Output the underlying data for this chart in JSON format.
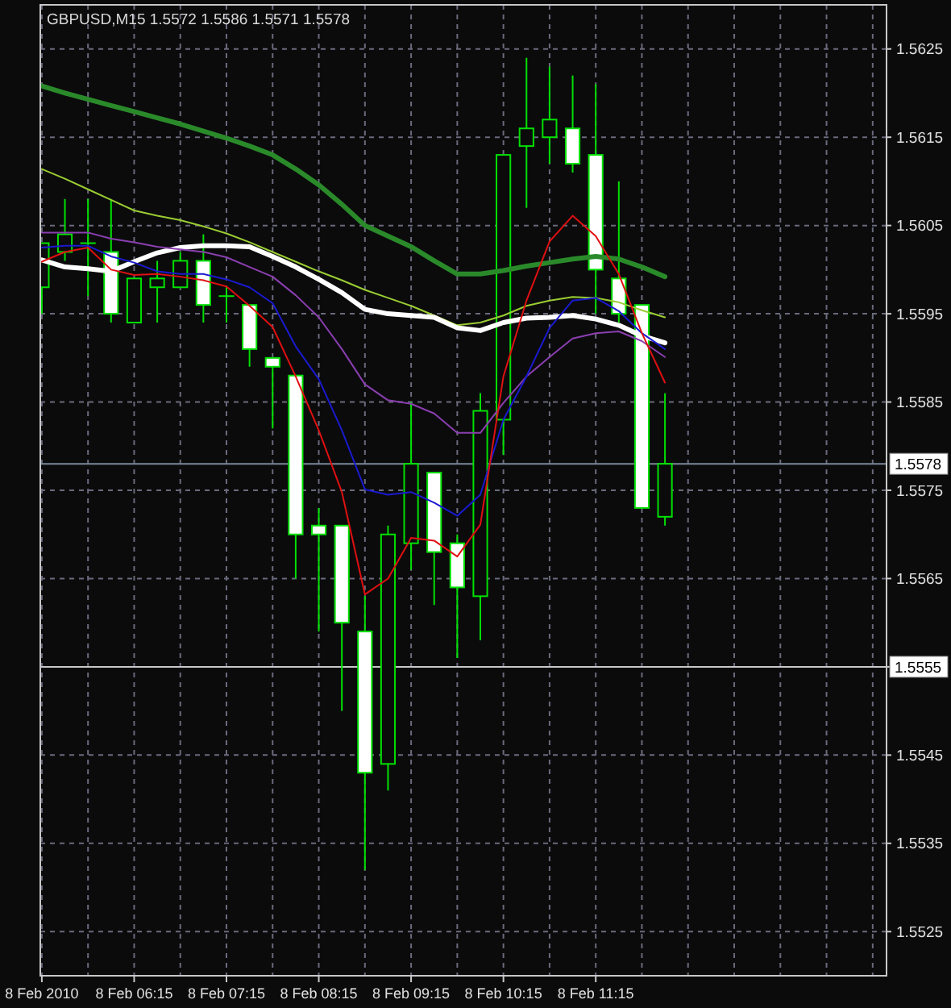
{
  "chart_data": {
    "type": "candlestick",
    "title": "GBPUSD,M15 1.5572 1.5586 1.5571 1.5578",
    "color": "#00e000",
    "x": [
      "2010-02-08T05:15",
      "2010-02-08T05:30",
      "2010-02-08T05:45",
      "2010-02-08T06:00",
      "2010-02-08T06:15",
      "2010-02-08T06:30",
      "2010-02-08T06:45",
      "2010-02-08T07:00",
      "2010-02-08T07:15",
      "2010-02-08T07:30",
      "2010-02-08T07:45",
      "2010-02-08T08:00",
      "2010-02-08T08:15",
      "2010-02-08T08:30",
      "2010-02-08T08:45",
      "2010-02-08T09:00",
      "2010-02-08T09:15",
      "2010-02-08T09:30",
      "2010-02-08T09:45",
      "2010-02-08T10:00",
      "2010-02-08T10:15",
      "2010-02-08T10:30",
      "2010-02-08T10:45",
      "2010-02-08T11:00",
      "2010-02-08T11:15",
      "2010-02-08T11:30",
      "2010-02-08T11:45",
      "2010-02-08T12:00"
    ],
    "ohlc": [
      [
        1.5598,
        1.5603,
        1.5595,
        1.5603
      ],
      [
        1.5602,
        1.5608,
        1.5601,
        1.5604
      ],
      [
        1.5603,
        1.5608,
        1.5597,
        1.5603
      ],
      [
        1.5602,
        1.5608,
        1.5594,
        1.5595
      ],
      [
        1.5594,
        1.5599,
        1.5594,
        1.5599
      ],
      [
        1.5598,
        1.5601,
        1.5594,
        1.5599
      ],
      [
        1.5598,
        1.5602,
        1.5598,
        1.5601
      ],
      [
        1.5601,
        1.5604,
        1.5594,
        1.5596
      ],
      [
        1.5597,
        1.5598,
        1.5594,
        1.5597
      ],
      [
        1.5596,
        1.5596,
        1.5589,
        1.5591
      ],
      [
        1.559,
        1.559,
        1.5582,
        1.5589
      ],
      [
        1.5588,
        1.5588,
        1.5565,
        1.557
      ],
      [
        1.5571,
        1.5573,
        1.5559,
        1.557
      ],
      [
        1.5571,
        1.5571,
        1.555,
        1.556
      ],
      [
        1.5559,
        1.5563,
        1.5532,
        1.5543
      ],
      [
        1.5544,
        1.5571,
        1.5541,
        1.557
      ],
      [
        1.5569,
        1.5585,
        1.5566,
        1.5578
      ],
      [
        1.5577,
        1.5577,
        1.5562,
        1.5568
      ],
      [
        1.5569,
        1.557,
        1.5556,
        1.5564
      ],
      [
        1.5563,
        1.5586,
        1.5558,
        1.5584
      ],
      [
        1.5583,
        1.5613,
        1.5579,
        1.5613
      ],
      [
        1.5614,
        1.5624,
        1.5607,
        1.5616
      ],
      [
        1.5615,
        1.5623,
        1.5612,
        1.5617
      ],
      [
        1.5616,
        1.5622,
        1.5611,
        1.5612
      ],
      [
        1.5613,
        1.5621,
        1.5595,
        1.56
      ],
      [
        1.5599,
        1.561,
        1.5594,
        1.5595
      ],
      [
        1.5596,
        1.5596,
        1.5573,
        1.5573
      ],
      [
        1.5572,
        1.5586,
        1.5571,
        1.5578
      ]
    ],
    "series": [
      {
        "type": "line",
        "color": "#2a8a2a",
        "values": [
          1.56208,
          1.562,
          1.56193,
          1.56186,
          1.56179,
          1.56172,
          1.56165,
          1.56157,
          1.56149,
          1.5614,
          1.5613,
          1.56114,
          1.56096,
          1.56074,
          1.5605,
          1.56038,
          1.56026,
          1.5601,
          1.55995,
          1.55995,
          1.55999,
          1.56004,
          1.56008,
          1.56012,
          1.56015,
          1.56012,
          1.56003,
          1.55992
        ]
      },
      {
        "type": "line",
        "color": "#9acd32",
        "values": [
          1.56114,
          1.56103,
          1.56091,
          1.56079,
          1.56067,
          1.56061,
          1.56056,
          1.56049,
          1.56041,
          1.56031,
          1.5602,
          1.56009,
          1.55998,
          1.55988,
          1.55977,
          1.55968,
          1.55959,
          1.55948,
          1.55937,
          1.5594,
          1.55948,
          1.55959,
          1.55965,
          1.55969,
          1.55968,
          1.55963,
          1.55954,
          1.55946
        ]
      },
      {
        "type": "line",
        "color": "#ffffff",
        "values": [
          1.56011,
          1.56003,
          1.56001,
          1.55998,
          1.56009,
          1.56019,
          1.56025,
          1.56027,
          1.56027,
          1.56026,
          1.56015,
          1.56003,
          1.55989,
          1.55974,
          1.55955,
          1.5595,
          1.55948,
          1.55946,
          1.55934,
          1.55931,
          1.5594,
          1.55945,
          1.55946,
          1.55948,
          1.55944,
          1.55937,
          1.55925,
          1.55917
        ]
      },
      {
        "type": "line",
        "color": "#8b3fb0",
        "values": [
          1.56042,
          1.56042,
          1.56042,
          1.56035,
          1.56031,
          1.56026,
          1.56023,
          1.5602,
          1.56014,
          1.56003,
          1.55992,
          1.55971,
          1.55946,
          1.5591,
          1.5587,
          1.55852,
          1.55848,
          1.55837,
          1.55815,
          1.55815,
          1.55849,
          1.55879,
          1.55901,
          1.55922,
          1.55928,
          1.5593,
          1.55919,
          1.55901
        ]
      },
      {
        "type": "line",
        "color": "#1a1ad0",
        "values": [
          1.56025,
          1.56027,
          1.56027,
          1.56015,
          1.56008,
          1.55998,
          1.55995,
          1.55995,
          1.55989,
          1.5598,
          1.55962,
          1.55913,
          1.55876,
          1.55818,
          1.55751,
          1.55745,
          1.55748,
          1.55736,
          1.55721,
          1.55745,
          1.5583,
          1.55879,
          1.55934,
          1.55965,
          1.55968,
          1.55953,
          1.55928,
          1.5591
        ]
      },
      {
        "type": "line",
        "color": "#e01010",
        "values": [
          1.56009,
          1.5602,
          1.56025,
          1.56,
          1.55994,
          1.55995,
          1.55992,
          1.55988,
          1.55981,
          1.55959,
          1.55935,
          1.55879,
          1.55818,
          1.55748,
          1.55632,
          1.5565,
          1.55696,
          1.55693,
          1.55675,
          1.55711,
          1.55879,
          1.55965,
          1.56032,
          1.56061,
          1.56038,
          1.55995,
          1.55928,
          1.55872
        ]
      }
    ],
    "xlim": [
      "2010-02-08T05:14",
      "2010-02-08T14:24"
    ],
    "xticks": [
      {
        "value": "2010-02-08T05:15",
        "label": "8 Feb 2010"
      },
      {
        "value": "2010-02-08T05:45",
        "label": null
      },
      {
        "value": "2010-02-08T06:15",
        "label": "8 Feb 06:15"
      },
      {
        "value": "2010-02-08T06:45",
        "label": null
      },
      {
        "value": "2010-02-08T07:15",
        "label": "8 Feb 07:15"
      },
      {
        "value": "2010-02-08T07:45",
        "label": null
      },
      {
        "value": "2010-02-08T08:15",
        "label": "8 Feb 08:15"
      },
      {
        "value": "2010-02-08T08:45",
        "label": null
      },
      {
        "value": "2010-02-08T09:15",
        "label": "8 Feb 09:15"
      },
      {
        "value": "2010-02-08T09:45",
        "label": null
      },
      {
        "value": "2010-02-08T10:15",
        "label": "8 Feb 10:15"
      },
      {
        "value": "2010-02-08T10:45",
        "label": null
      },
      {
        "value": "2010-02-08T11:15",
        "label": "8 Feb 11:15"
      },
      {
        "value": "2010-02-08T11:45",
        "label": null
      },
      {
        "value": "2010-02-08T12:15",
        "label": null
      },
      {
        "value": "2010-02-08T12:45",
        "label": null
      },
      {
        "value": "2010-02-08T13:15",
        "label": null
      },
      {
        "value": "2010-02-08T13:45",
        "label": null
      },
      {
        "value": "2010-02-08T14:15",
        "label": null
      }
    ],
    "ylim": [
      1.552,
      1.563
    ],
    "yticks": [
      1.5625,
      1.5615,
      1.5605,
      1.5595,
      1.5585,
      1.5575,
      1.5565,
      {
        "value": 1.5555,
        "label": null
      },
      1.5545,
      1.5535,
      1.5525
    ],
    "grid": true,
    "ref_lines": [
      {
        "axis": "y",
        "value": 1.5578,
        "label": "1.5578",
        "color": "#7a8898"
      },
      {
        "axis": "y",
        "value": 1.5555,
        "label": "1.5555",
        "color": "#c8c8c8"
      }
    ]
  }
}
